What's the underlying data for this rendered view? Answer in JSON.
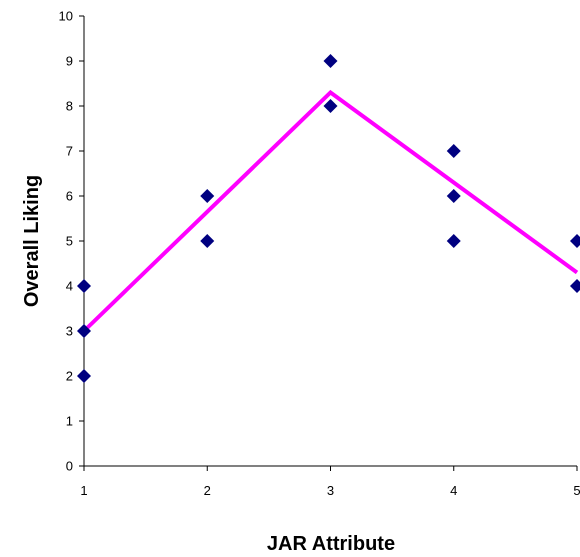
{
  "chart_data": {
    "type": "scatter",
    "xlabel": "JAR Attribute",
    "ylabel": "Overall Liking",
    "xlim": [
      1,
      5
    ],
    "ylim": [
      0,
      10
    ],
    "x_ticks": [
      "1",
      "2",
      "3",
      "4",
      "5"
    ],
    "y_ticks": [
      "0",
      "1",
      "2",
      "3",
      "4",
      "5",
      "6",
      "7",
      "8",
      "9",
      "10"
    ],
    "grid": false,
    "legend": "none",
    "series": [
      {
        "kind": "points",
        "marker": "diamond",
        "color": "#000080",
        "points": [
          {
            "x": 1,
            "y": 4
          },
          {
            "x": 1,
            "y": 3
          },
          {
            "x": 1,
            "y": 2
          },
          {
            "x": 2,
            "y": 6
          },
          {
            "x": 2,
            "y": 5
          },
          {
            "x": 3,
            "y": 9
          },
          {
            "x": 3,
            "y": 8
          },
          {
            "x": 4,
            "y": 7
          },
          {
            "x": 4,
            "y": 6
          },
          {
            "x": 4,
            "y": 5
          },
          {
            "x": 5,
            "y": 5
          },
          {
            "x": 5,
            "y": 4
          }
        ]
      },
      {
        "kind": "line",
        "color": "#FF00FF",
        "points": [
          {
            "x": 1,
            "y": 3.0
          },
          {
            "x": 3,
            "y": 8.3
          },
          {
            "x": 5,
            "y": 4.3
          }
        ]
      }
    ]
  }
}
